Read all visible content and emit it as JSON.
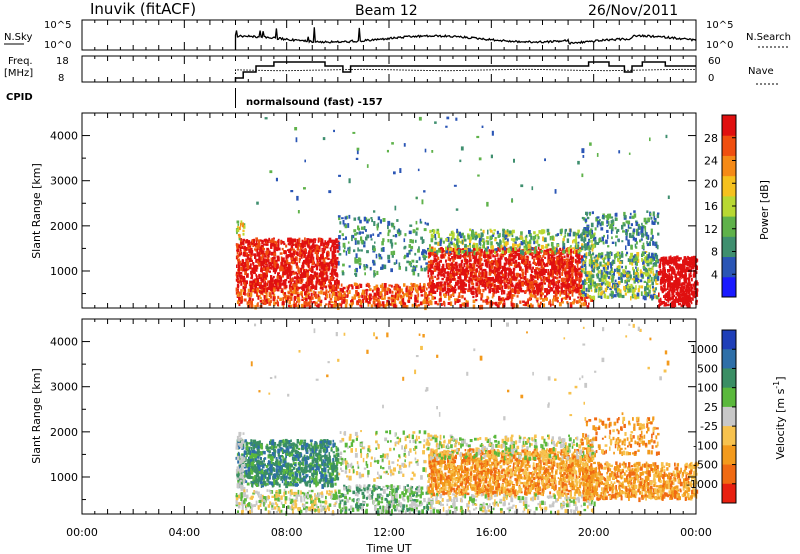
{
  "header": {
    "station": "Inuvik (fitACF)",
    "beam": "Beam 12",
    "date": "26/Nov/2011"
  },
  "top_panels": {
    "nsky_label": "N.Sky",
    "nsky_ticks": [
      "10^5",
      "10^0"
    ],
    "nsearch_label": "N.Search",
    "nsearch_ticks": [
      "10^5",
      "10^0"
    ],
    "freq_label_1": "Freq.",
    "freq_label_2": "[MHz]",
    "freq_ticks": [
      "18",
      "8"
    ],
    "nave_label": "Nave",
    "nave_ticks": [
      "60",
      "0"
    ],
    "cpid_label": "CPID",
    "cpid_text": "normalsound (fast) -157",
    "data_start_hour": 6
  },
  "colors": {
    "power": [
      "#1a1aff",
      "#2a55b5",
      "#3f8f6f",
      "#5fb24a",
      "#b8d832",
      "#f5c11e",
      "#f58a17",
      "#f04f0f",
      "#e01010"
    ],
    "velocity": [
      "#1f3fb8",
      "#2e6fa8",
      "#3a8e64",
      "#5ab83c",
      "#c8c8c8",
      "#f7c24e",
      "#f39a1c",
      "#f06a12",
      "#e82010"
    ]
  },
  "chart_data": [
    {
      "type": "heatmap",
      "ylabel": "Slant Range [km]",
      "x_range_hours": [
        0,
        24
      ],
      "y_range_km": [
        180,
        4500
      ],
      "y_ticks": [
        1000,
        2000,
        3000,
        4000
      ],
      "colorbar": {
        "label": "Power [dB]",
        "range": [
          0,
          32
        ],
        "tick_values": [
          4,
          8,
          12,
          16,
          20,
          24,
          28
        ],
        "tick_labels": [
          "4",
          "8",
          "12",
          "16",
          "20",
          "24",
          "28"
        ]
      },
      "dominant_values": [
        {
          "hours": [
            6,
            10
          ],
          "km": [
            600,
            1700
          ],
          "value": 28
        },
        {
          "hours": [
            13.5,
            24
          ],
          "km": [
            400,
            1500
          ],
          "value": 28
        },
        {
          "hours": [
            6,
            24
          ],
          "km": [
            180,
            600
          ],
          "value": 24
        },
        {
          "hours": [
            6,
            24
          ],
          "km": [
            1700,
            2300
          ],
          "value": 10
        }
      ]
    },
    {
      "type": "heatmap",
      "xlabel": "Time UT",
      "ylabel": "Slant Range [km]",
      "x_range_hours": [
        0,
        24
      ],
      "y_range_km": [
        180,
        4500
      ],
      "y_ticks": [
        1000,
        2000,
        3000,
        4000
      ],
      "x_ticks": [
        "00:00",
        "04:00",
        "08:00",
        "12:00",
        "16:00",
        "20:00",
        "00:00"
      ],
      "colorbar": {
        "label": "Velocity [m s",
        "label_sup": "-1",
        "label_end": "]",
        "tick_labels": [
          "1000",
          "500",
          "100",
          "25",
          "-25",
          "-100",
          "-500",
          "-1000"
        ]
      },
      "dominant_values": [
        {
          "hours": [
            6.5,
            10
          ],
          "km": [
            800,
            1800
          ],
          "value_m_s": 60
        },
        {
          "hours": [
            13.5,
            20
          ],
          "km": [
            600,
            1600
          ],
          "value_m_s": -200
        },
        {
          "hours": [
            20,
            24
          ],
          "km": [
            500,
            1300
          ],
          "value_m_s": -300
        },
        {
          "hours": [
            6,
            24
          ],
          "km": [
            180,
            600
          ],
          "value_m_s": 0
        }
      ]
    }
  ]
}
